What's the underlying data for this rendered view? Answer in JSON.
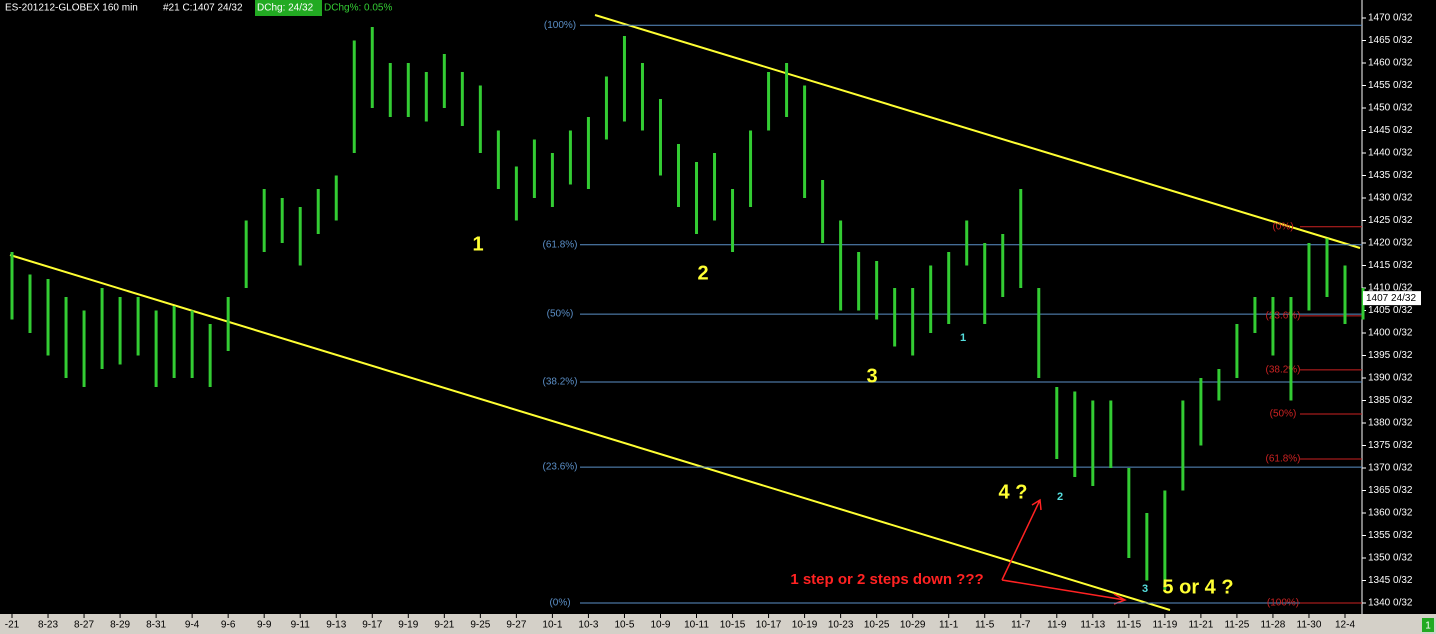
{
  "chart_data": {
    "type": "ohlc",
    "title": "ES-201212-GLOBEX 160 min",
    "header_fields": [
      "#21 C:1407 24/32",
      "DChg: 24/32",
      "DChg%: 0.05%"
    ],
    "categories": [
      "-21",
      "8-23",
      "8-27",
      "8-29",
      "8-31",
      "9-4",
      "9-6",
      "9-9",
      "9-11",
      "9-13",
      "9-17",
      "9-19",
      "9-21",
      "9-25",
      "9-27",
      "10-1",
      "10-3",
      "10-5",
      "10-9",
      "10-11",
      "10-15",
      "10-17",
      "10-19",
      "10-23",
      "10-25",
      "10-29",
      "11-1",
      "11-5",
      "11-7",
      "11-9",
      "11-13",
      "11-15",
      "11-19",
      "11-21",
      "11-25",
      "11-28",
      "11-30",
      "12-4"
    ],
    "low": [
      1403,
      1400,
      1395,
      1390,
      1388,
      1392,
      1393,
      1395,
      1388,
      1390,
      1390,
      1388,
      1396,
      1410,
      1418,
      1420,
      1415,
      1422,
      1425,
      1440,
      1450,
      1448,
      1448,
      1447,
      1450,
      1446,
      1440,
      1432,
      1425,
      1430,
      1428,
      1433,
      1432,
      1443,
      1447,
      1445,
      1435,
      1428,
      1422,
      1425,
      1418,
      1428,
      1445,
      1448,
      1430,
      1420,
      1405,
      1405,
      1403,
      1397,
      1395,
      1400,
      1402,
      1415,
      1402,
      1408,
      1410,
      1390,
      1372,
      1368,
      1366,
      1370,
      1350,
      1345,
      1343,
      1365,
      1375,
      1385,
      1390,
      1400,
      1395,
      1385,
      1405,
      1408,
      1402,
      1403
    ],
    "high": [
      1418,
      1413,
      1412,
      1408,
      1405,
      1410,
      1408,
      1408,
      1405,
      1406,
      1405,
      1402,
      1408,
      1425,
      1432,
      1430,
      1428,
      1432,
      1435,
      1465,
      1468,
      1460,
      1460,
      1458,
      1462,
      1458,
      1455,
      1445,
      1437,
      1443,
      1440,
      1445,
      1448,
      1457,
      1466,
      1460,
      1452,
      1442,
      1438,
      1440,
      1432,
      1445,
      1458,
      1460,
      1455,
      1434,
      1425,
      1418,
      1416,
      1410,
      1410,
      1415,
      1418,
      1425,
      1420,
      1422,
      1432,
      1410,
      1388,
      1387,
      1385,
      1385,
      1370,
      1360,
      1365,
      1385,
      1390,
      1392,
      1402,
      1408,
      1408,
      1408,
      1420,
      1421,
      1415,
      1410
    ],
    "color": "#33cc33",
    "ylim": [
      1340,
      1470
    ],
    "yticks": [
      {
        "value": 1340,
        "label": "1340 0/32"
      },
      {
        "value": 1345,
        "label": "1345 0/32"
      },
      {
        "value": 1350,
        "label": "1350 0/32"
      },
      {
        "value": 1355,
        "label": "1355 0/32"
      },
      {
        "value": 1360,
        "label": "1360 0/32"
      },
      {
        "value": 1365,
        "label": "1365 0/32"
      },
      {
        "value": 1370,
        "label": "1370 0/32"
      },
      {
        "value": 1375,
        "label": "1375 0/32"
      },
      {
        "value": 1380,
        "label": "1380 0/32"
      },
      {
        "value": 1385,
        "label": "1385 0/32"
      },
      {
        "value": 1390,
        "label": "1390 0/32"
      },
      {
        "value": 1395,
        "label": "1395 0/32"
      },
      {
        "value": 1400,
        "label": "1400 0/32"
      },
      {
        "value": 1405,
        "label": "1405 0/32"
      },
      {
        "value": 1410,
        "label": "1410 0/32"
      },
      {
        "value": 1415,
        "label": "1415 0/32"
      },
      {
        "value": 1420,
        "label": "1420 0/32"
      },
      {
        "value": 1425,
        "label": "1425 0/32"
      },
      {
        "value": 1430,
        "label": "1430 0/32"
      },
      {
        "value": 1435,
        "label": "1435 0/32"
      },
      {
        "value": 1440,
        "label": "1440 0/32"
      },
      {
        "value": 1445,
        "label": "1445 0/32"
      },
      {
        "value": 1450,
        "label": "1450 0/32"
      },
      {
        "value": 1455,
        "label": "1455 0/32"
      },
      {
        "value": 1460,
        "label": "1460 0/32"
      },
      {
        "value": 1465,
        "label": "1465 0/32"
      },
      {
        "value": 1470,
        "label": "1470 0/32"
      }
    ],
    "last_price": {
      "value": 1407.75,
      "label": "1407 24/32"
    },
    "fib_blue": [
      {
        "value": 1468.4,
        "label": "(100%)"
      },
      {
        "value": 1419.6,
        "label": "(61.8%)"
      },
      {
        "value": 1404.2,
        "label": "(50%)"
      },
      {
        "value": 1389.1,
        "label": "(38.2%)"
      },
      {
        "value": 1370.2,
        "label": "(23.6%)"
      },
      {
        "value": 1340,
        "label": "(0%)"
      }
    ],
    "fib_red": [
      {
        "value": 1423.6,
        "label": "(0%)"
      },
      {
        "value": 1403.8,
        "label": "(23.6%)"
      },
      {
        "value": 1391.8,
        "label": "(38.2%)"
      },
      {
        "value": 1382,
        "label": "(50%)"
      },
      {
        "value": 1372,
        "label": "(61.8%)"
      },
      {
        "value": 1340,
        "label": "(100%)"
      }
    ],
    "annotations": [
      "1",
      "2",
      "3",
      "4 ?",
      "5 or 4 ?",
      "1",
      "2",
      "3",
      "1 step or 2 steps down ???"
    ],
    "corner_label": "1"
  }
}
